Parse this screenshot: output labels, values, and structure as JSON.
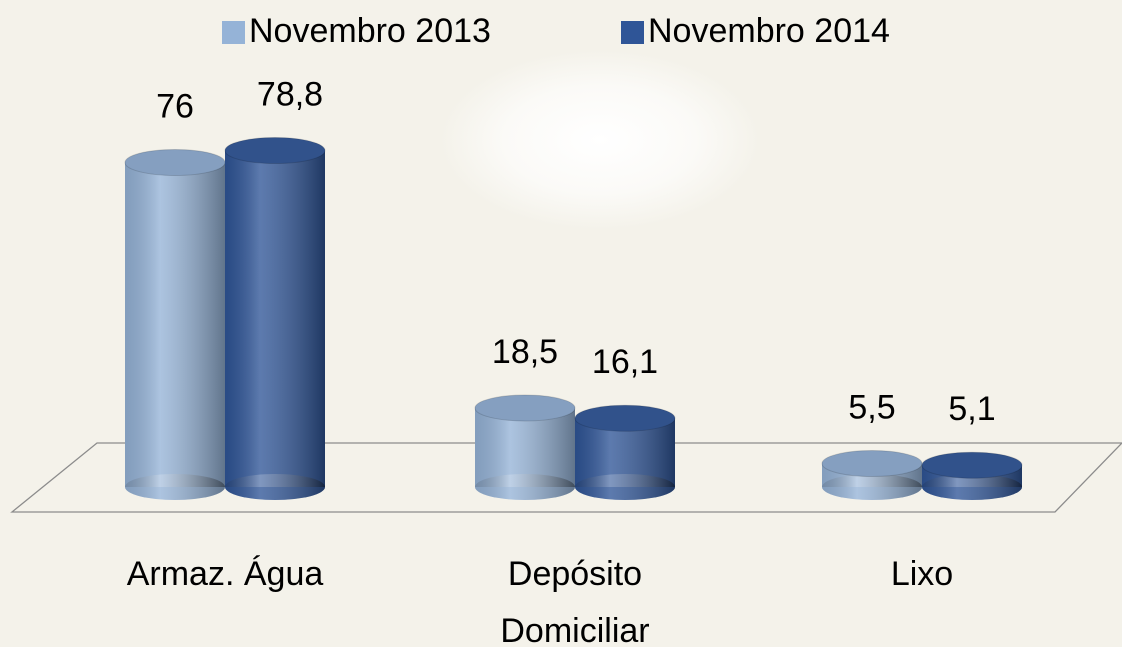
{
  "chart_data": {
    "type": "bar3d",
    "categories": [
      "Armaz. Água",
      "Depósito Domiciliar",
      "Lixo"
    ],
    "series": [
      {
        "name": "Novembro 2013",
        "color": "#95b3d7",
        "values": [
          76,
          18.5,
          5.5
        ],
        "value_labels": [
          "76",
          "18,5",
          "5,5"
        ]
      },
      {
        "name": "Novembro 2014",
        "color": "#2f5597",
        "values": [
          78.8,
          16.1,
          5.1
        ],
        "value_labels": [
          "78,8",
          "16,1",
          "5,1"
        ]
      }
    ],
    "legend": "top"
  }
}
